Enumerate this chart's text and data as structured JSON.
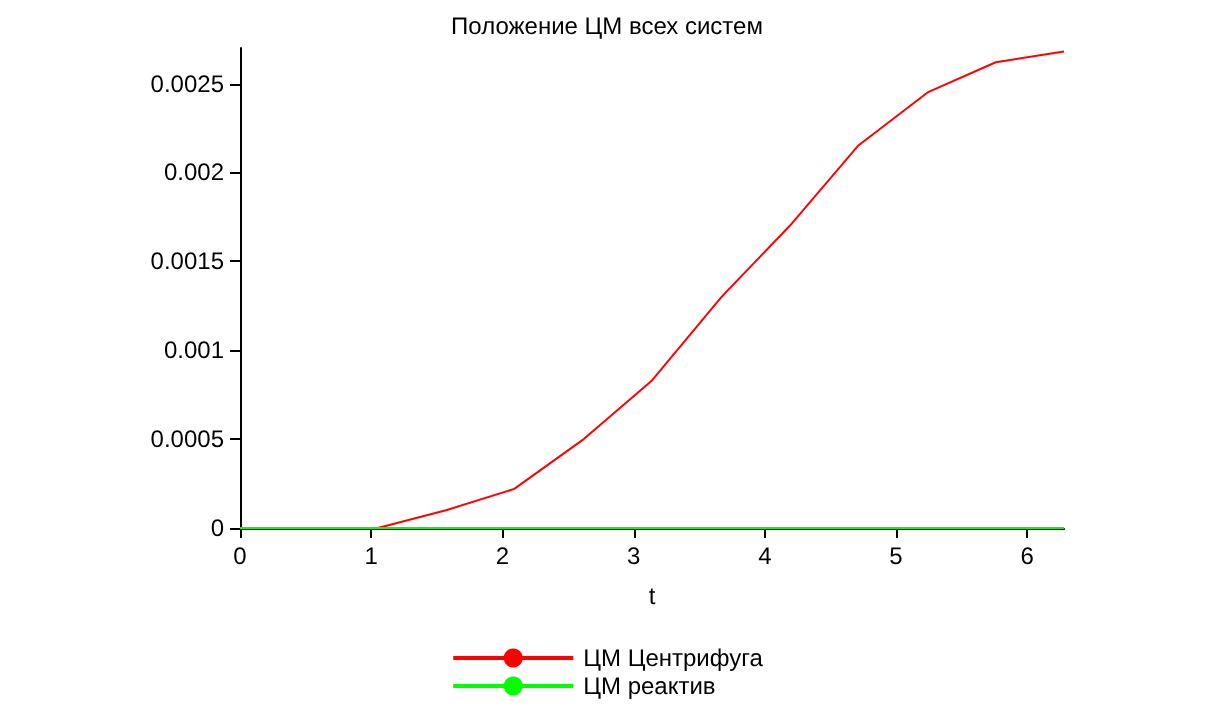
{
  "chart_data": {
    "type": "line",
    "title": "Положение ЦМ всех систем",
    "xlabel": "t",
    "series": [
      {
        "name": "ЦМ Центрифуга",
        "color": "#ff0000",
        "x": [
          0,
          0.52,
          1.05,
          1.57,
          2.09,
          2.62,
          3.14,
          3.67,
          4.19,
          4.71,
          5.24,
          5.76,
          6.28
        ],
        "values": [
          0,
          0,
          0,
          0.0001,
          0.00022,
          0.0005,
          0.00083,
          0.0013,
          0.0017,
          0.00215,
          0.00245,
          0.00262,
          0.00268
        ]
      },
      {
        "name": "ЦМ реактив",
        "color": "#00ff00",
        "x": [
          0,
          6.28
        ],
        "values": [
          0,
          0
        ]
      }
    ],
    "xlim": [
      0,
      6.28
    ],
    "xticks": [
      0,
      1,
      2,
      3,
      4,
      5,
      6
    ],
    "ylim": [
      0,
      0.0027
    ],
    "yticks": [
      0,
      0.0005,
      0.001,
      0.0015,
      0.002,
      0.0025
    ],
    "grid": false,
    "legend": "bottom",
    "marker": "none",
    "line_style": "solid"
  }
}
